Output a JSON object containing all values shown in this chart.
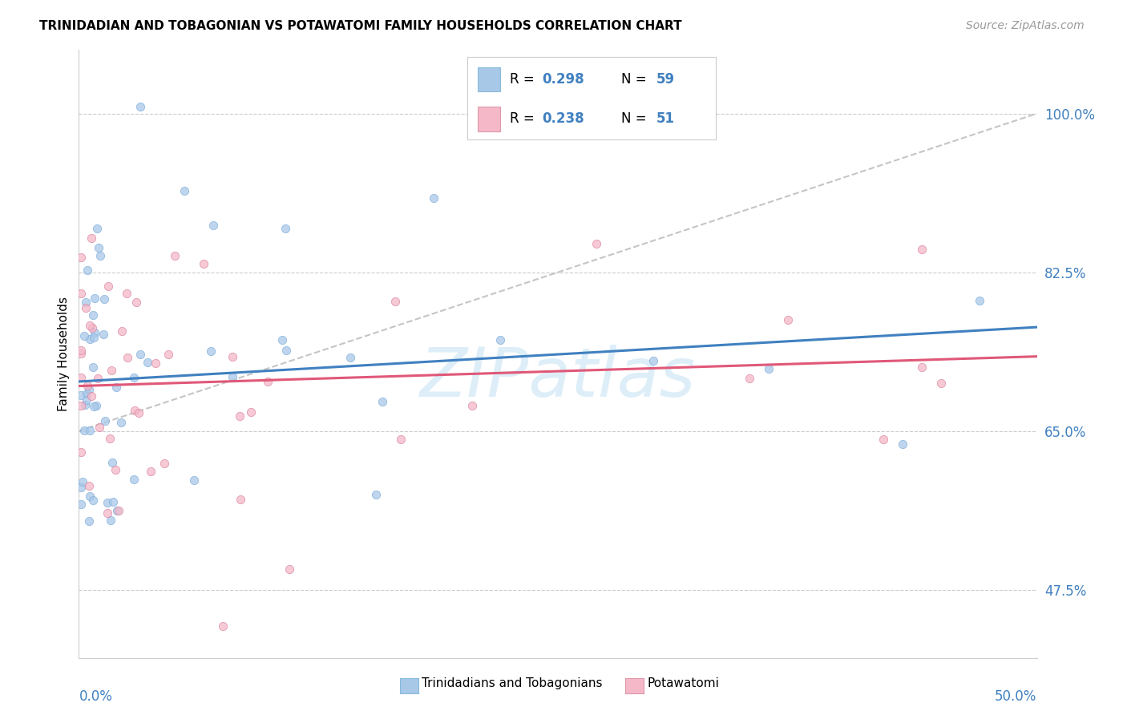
{
  "title": "TRINIDADIAN AND TOBAGONIAN VS POTAWATOMI FAMILY HOUSEHOLDS CORRELATION CHART",
  "source": "Source: ZipAtlas.com",
  "ylabel": "Family Households",
  "right_ytick_labels": [
    "47.5%",
    "65.0%",
    "82.5%",
    "100.0%"
  ],
  "right_ytick_vals": [
    47.5,
    65.0,
    82.5,
    100.0
  ],
  "xlim": [
    0.0,
    50.0
  ],
  "ylim": [
    40.0,
    107.0
  ],
  "color_blue": "#a8c8e8",
  "color_pink": "#f4b8c8",
  "color_trend_blue": "#4080c0",
  "color_trend_pink": "#e05878",
  "color_dashed": "#bbbbbb",
  "color_label_blue": "#4080c0",
  "watermark_text": "ZIPatlas",
  "watermark_color": "#ddeef8",
  "legend_r1": "R = 0.298",
  "legend_n1": "N = 59",
  "legend_r2": "R = 0.238",
  "legend_n2": "N = 51"
}
